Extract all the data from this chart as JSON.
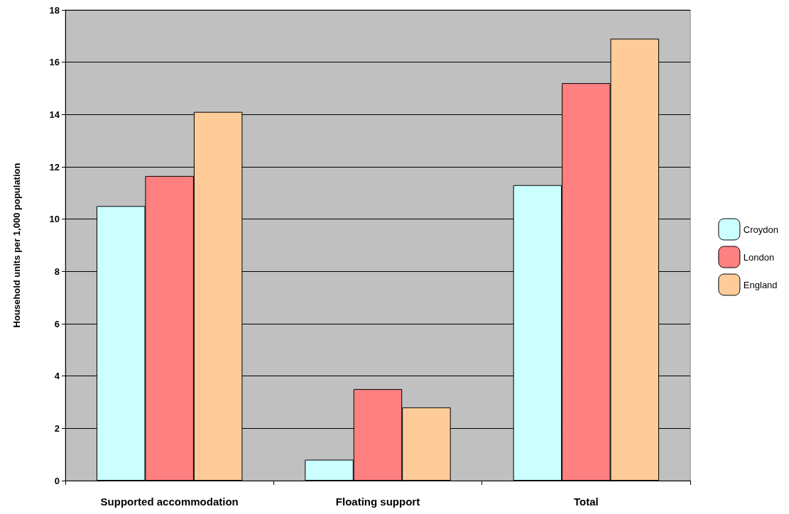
{
  "chart_data": {
    "type": "bar",
    "ylabel": "Household units per 1,000 population",
    "categories": [
      "Supported accommodation",
      "Floating support",
      "Total"
    ],
    "series": [
      {
        "name": "Croydon",
        "color": "#ccffff",
        "values": [
          10.5,
          0.8,
          11.3
        ]
      },
      {
        "name": "London",
        "color": "#ff8080",
        "values": [
          11.65,
          3.5,
          15.2
        ]
      },
      {
        "name": "England",
        "color": "#ffcc99",
        "values": [
          14.1,
          2.8,
          16.9
        ]
      }
    ],
    "ylim": [
      0,
      18
    ],
    "yticks": [
      0,
      2,
      4,
      6,
      8,
      10,
      12,
      14,
      16,
      18
    ],
    "grid": "y",
    "legend": "right"
  }
}
